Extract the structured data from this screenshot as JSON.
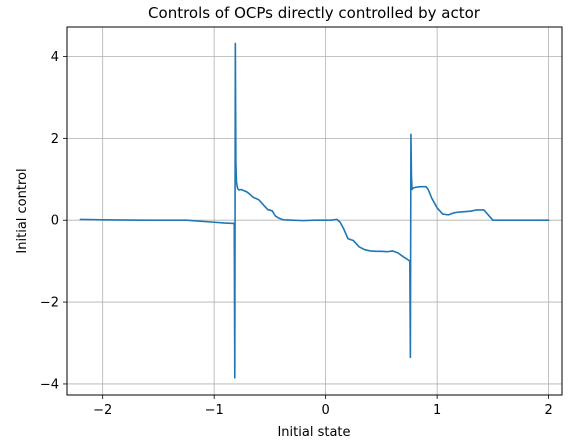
{
  "chart_data": {
    "type": "line",
    "title": "Controls of OCPs directly controlled by actor",
    "xlabel": "Initial state",
    "ylabel": "Initial control",
    "xlim": [
      -2.32,
      2.12
    ],
    "ylim": [
      -4.27,
      4.72
    ],
    "xticks": [
      -2,
      -1,
      0,
      1,
      2
    ],
    "xtick_labels": [
      "−2",
      "−1",
      "0",
      "1",
      "2"
    ],
    "yticks": [
      -4,
      -2,
      0,
      2,
      4
    ],
    "ytick_labels": [
      "−4",
      "−2",
      "0",
      "2",
      "4"
    ],
    "grid": true,
    "colors": {
      "line": "#1f77b4",
      "grid": "#b0b0b0",
      "axes": "#000000"
    },
    "series": [
      {
        "x": [
          -2.2,
          -2.0,
          -1.6,
          -1.25,
          -1.0,
          -0.9,
          -0.82,
          -0.815,
          -0.81,
          -0.805,
          -0.8,
          -0.795,
          -0.79,
          -0.78,
          -0.76,
          -0.73,
          -0.7,
          -0.65,
          -0.6,
          -0.56,
          -0.52,
          -0.48,
          -0.45,
          -0.42,
          -0.38,
          -0.3,
          -0.2,
          -0.1,
          0.0,
          0.05,
          0.1,
          0.13,
          0.16,
          0.2,
          0.25,
          0.3,
          0.35,
          0.4,
          0.45,
          0.5,
          0.55,
          0.6,
          0.65,
          0.7,
          0.73,
          0.755,
          0.76,
          0.765,
          0.77,
          0.775,
          0.78,
          0.8,
          0.85,
          0.9,
          0.92,
          0.95,
          1.0,
          1.05,
          1.1,
          1.15,
          1.2,
          1.3,
          1.35,
          1.42,
          1.5,
          1.6,
          1.7,
          1.8,
          1.9,
          2.0
        ],
        "y": [
          0.02,
          0.01,
          0.0,
          0.0,
          -0.05,
          -0.07,
          -0.08,
          -3.85,
          4.32,
          1.4,
          0.95,
          0.85,
          0.78,
          0.74,
          0.75,
          0.72,
          0.68,
          0.56,
          0.5,
          0.38,
          0.26,
          0.23,
          0.1,
          0.05,
          0.01,
          0.0,
          -0.01,
          0.0,
          0.0,
          0.0,
          0.02,
          -0.05,
          -0.2,
          -0.45,
          -0.5,
          -0.65,
          -0.72,
          -0.75,
          -0.76,
          -0.76,
          -0.77,
          -0.75,
          -0.8,
          -0.9,
          -0.95,
          -1.0,
          -3.35,
          2.1,
          1.05,
          0.75,
          0.78,
          0.8,
          0.82,
          0.82,
          0.75,
          0.55,
          0.3,
          0.15,
          0.13,
          0.18,
          0.2,
          0.22,
          0.25,
          0.25,
          0.0,
          0.0,
          0.0,
          0.0,
          0.0,
          0.0
        ]
      }
    ]
  }
}
